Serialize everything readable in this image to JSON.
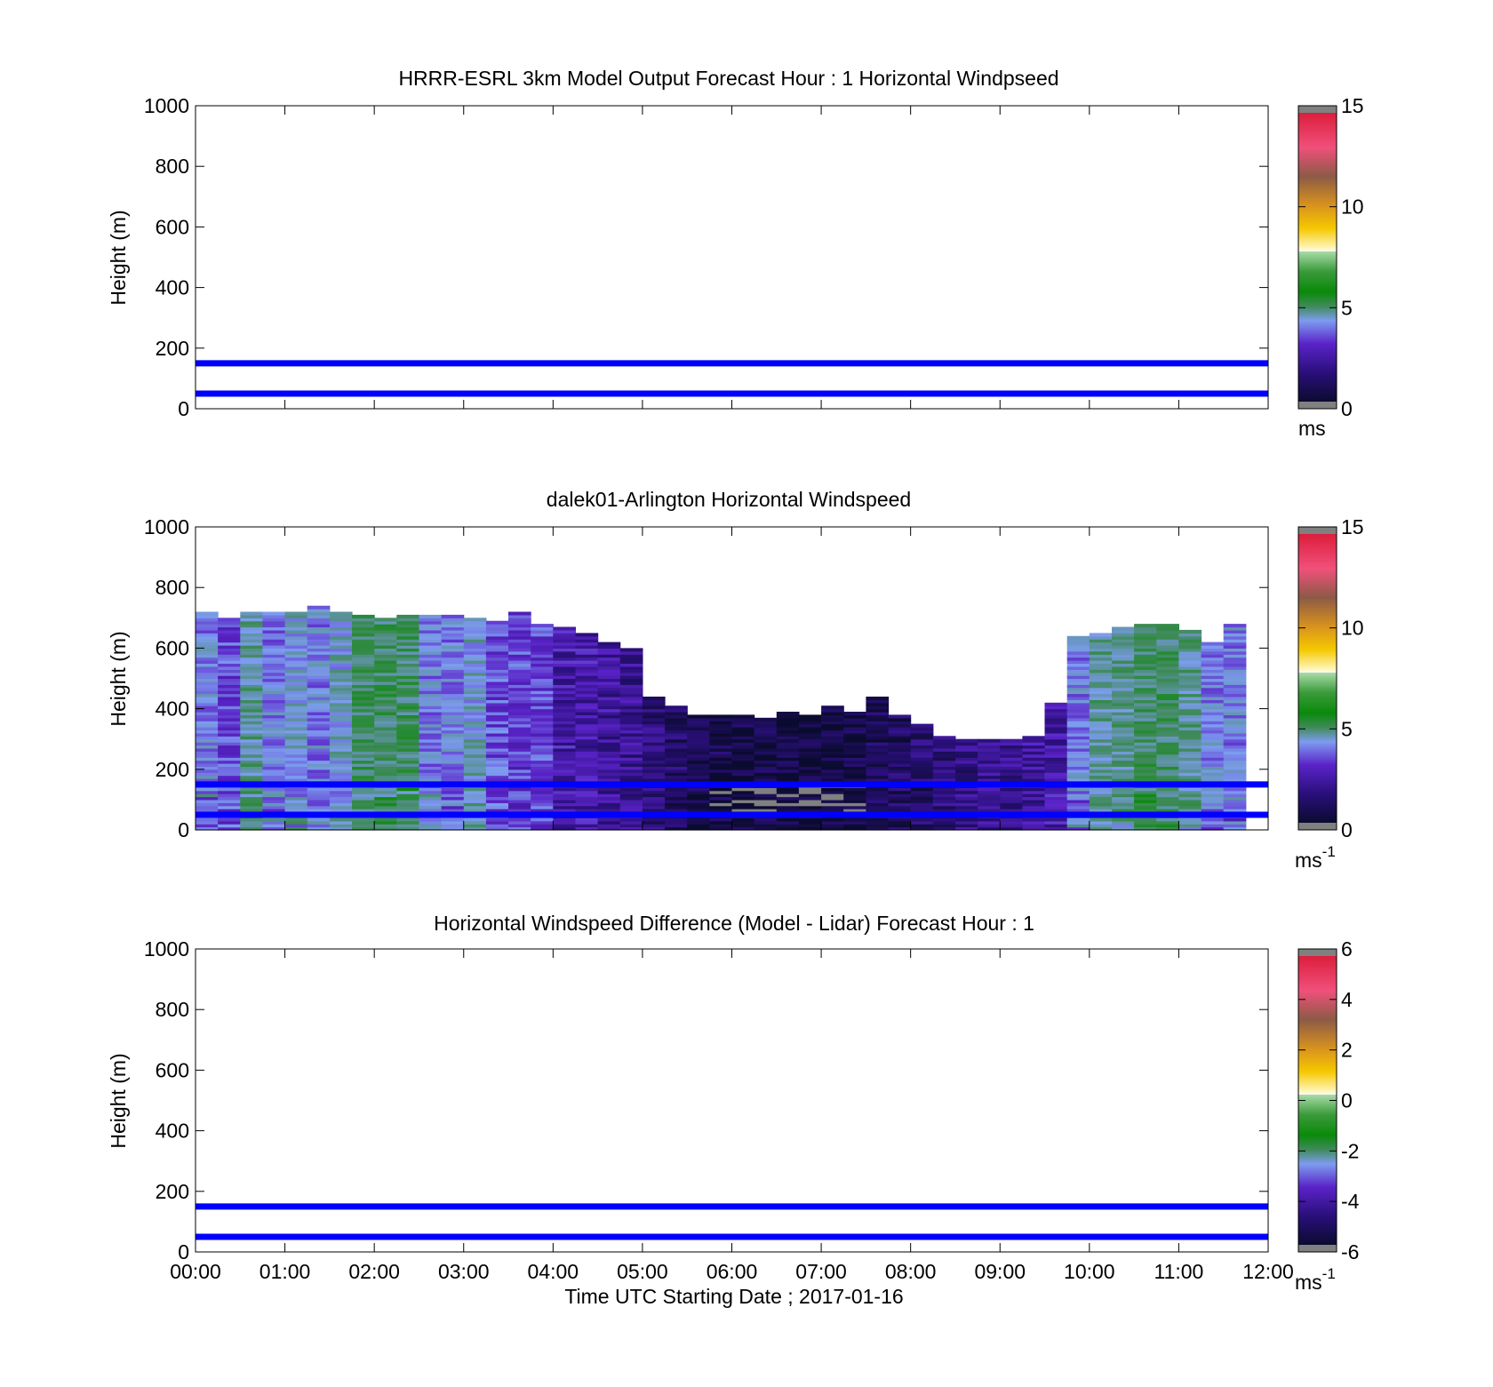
{
  "chart_data": [
    {
      "type": "heatmap",
      "title": "HRRR-ESRL 3km Model Output   Forecast Hour : 1 Horizontal Windpseed",
      "ylabel": "Height (m)",
      "xlabel": "",
      "xlim": [
        "00:00",
        "12:00"
      ],
      "ylim": [
        0,
        1000
      ],
      "yticks": [
        "0",
        "200",
        "400",
        "600",
        "800",
        "1000"
      ],
      "xticks": [],
      "grid": false,
      "reference_lines_m": [
        150,
        50
      ],
      "colorbar": {
        "range": [
          0,
          15
        ],
        "ticks": [
          "0",
          "5",
          "10",
          "15"
        ],
        "unit": "ms",
        "unit_sup": ""
      },
      "data": []
    },
    {
      "type": "heatmap",
      "title": "dalek01-Arlington  Horizontal Windspeed",
      "ylabel": "Height (m)",
      "xlabel": "",
      "xlim": [
        "00:00",
        "12:00"
      ],
      "ylim": [
        0,
        1000
      ],
      "yticks": [
        "0",
        "200",
        "400",
        "600",
        "800",
        "1000"
      ],
      "xticks": [],
      "grid": false,
      "reference_lines_m": [
        150,
        50
      ],
      "colorbar": {
        "range": [
          0,
          15
        ],
        "ticks": [
          "0",
          "5",
          "10",
          "15"
        ],
        "unit": "ms",
        "unit_sup": "-1"
      },
      "columns_hour_start": [
        0.0,
        0.25,
        0.5,
        0.75,
        1.0,
        1.25,
        1.5,
        1.75,
        2.0,
        2.25,
        2.5,
        2.75,
        3.0,
        3.25,
        3.5,
        3.75,
        4.0,
        4.25,
        4.5,
        4.75,
        5.0,
        5.25,
        5.5,
        5.75,
        6.0,
        6.25,
        6.5,
        6.75,
        7.0,
        7.25,
        7.5,
        7.75,
        8.0,
        8.25,
        8.5,
        8.75,
        9.0,
        9.25,
        9.5,
        9.75,
        10.0,
        10.25,
        10.5,
        10.75,
        11.0,
        11.25,
        11.5
      ],
      "column_top_m": [
        720,
        700,
        720,
        720,
        720,
        740,
        720,
        710,
        700,
        710,
        710,
        710,
        700,
        690,
        720,
        680,
        670,
        650,
        620,
        600,
        440,
        410,
        380,
        380,
        380,
        370,
        390,
        380,
        410,
        390,
        440,
        380,
        350,
        310,
        300,
        300,
        300,
        310,
        420,
        640,
        650,
        670,
        680,
        680,
        660,
        620,
        680
      ],
      "column_speed_ms": [
        3.5,
        3.0,
        4.5,
        3.5,
        4.0,
        3.5,
        4.0,
        5.0,
        5.0,
        5.0,
        3.5,
        3.5,
        4.0,
        3.0,
        2.8,
        2.8,
        2.0,
        2.0,
        1.8,
        1.6,
        1.2,
        0.9,
        0.6,
        0.5,
        0.4,
        0.4,
        0.3,
        0.3,
        0.3,
        0.4,
        0.7,
        0.8,
        1.0,
        1.2,
        1.4,
        1.6,
        1.6,
        1.8,
        2.0,
        3.5,
        4.5,
        4.5,
        5.0,
        5.0,
        4.5,
        3.5,
        3.5
      ],
      "grey_values": "below 0 or above 15 shown grey"
    },
    {
      "type": "heatmap",
      "title": "Horizontal Windspeed Difference (Model - Lidar) Forecast Hour : 1",
      "ylabel": "Height (m)",
      "xlabel": "Time UTC  Starting Date ; 2017-01-16",
      "xlim": [
        "00:00",
        "12:00"
      ],
      "ylim": [
        0,
        1000
      ],
      "yticks": [
        "0",
        "200",
        "400",
        "600",
        "800",
        "1000"
      ],
      "xticks": [
        "00:00",
        "01:00",
        "02:00",
        "03:00",
        "04:00",
        "05:00",
        "06:00",
        "07:00",
        "08:00",
        "09:00",
        "10:00",
        "11:00",
        "12:00"
      ],
      "grid": false,
      "reference_lines_m": [
        150,
        50
      ],
      "colorbar": {
        "range": [
          -6,
          6
        ],
        "ticks": [
          "-6",
          "-4",
          "-2",
          "0",
          "2",
          "4",
          "6"
        ],
        "unit": "ms",
        "unit_sup": "-1"
      },
      "data": []
    }
  ],
  "colors": {
    "reference_line": "#0000ff",
    "missing_out_of_range": "#808080",
    "colormap": [
      "#808080",
      "#0b0b30",
      "#2a0f7a",
      "#5a23c8",
      "#7d9cf0",
      "#3f8a5a",
      "#0a8a0a",
      "#a8dca8",
      "#f0f0f0",
      "#f5c800",
      "#c87f1e",
      "#8c5a46",
      "#f0507a",
      "#dc1e3c",
      "#808080"
    ]
  }
}
